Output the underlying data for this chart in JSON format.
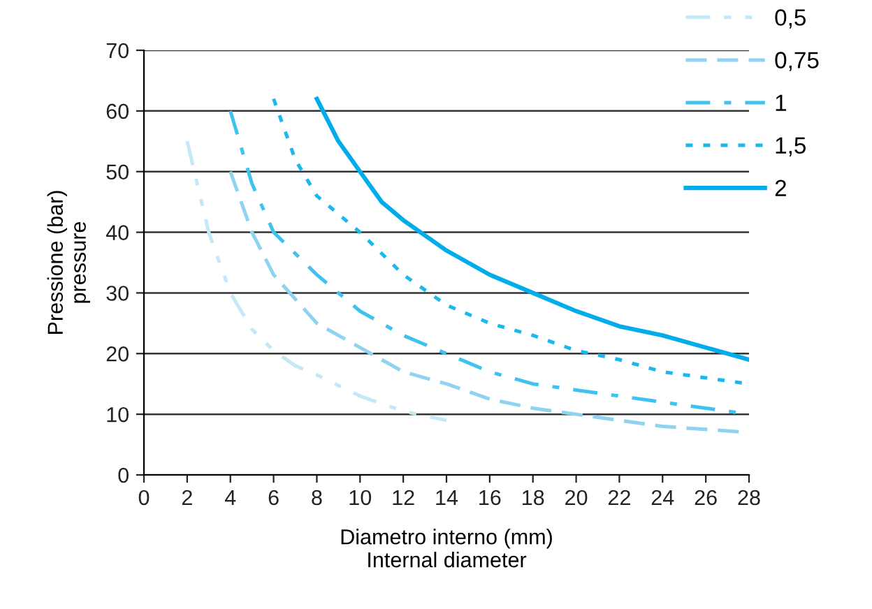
{
  "chart_data": {
    "type": "line",
    "xlabel": "Diametro interno (mm)\nInternal diameter",
    "ylabel": "Pressione (bar)\npressure",
    "xlim": [
      0,
      28
    ],
    "xticks": [
      0,
      2,
      4,
      6,
      8,
      10,
      12,
      14,
      16,
      18,
      20,
      22,
      24,
      26,
      28
    ],
    "ylim": [
      0,
      70
    ],
    "yticks": [
      0,
      10,
      20,
      30,
      40,
      50,
      60,
      70
    ],
    "grid": "y",
    "legend": "top right",
    "marker": "none",
    "series": [
      {
        "name": "0,5",
        "color": "#c5e8f7",
        "line_style": "dashdotdot",
        "x": [
          2,
          3,
          4,
          5,
          6,
          7,
          8,
          10,
          12,
          14
        ],
        "values": [
          55,
          40,
          30,
          24,
          20.5,
          18,
          16.5,
          13,
          10.5,
          9
        ]
      },
      {
        "name": "0,75",
        "color": "#8fd3f0",
        "line_style": "dashed",
        "x": [
          4,
          5,
          6,
          8,
          10,
          12,
          14,
          16,
          18,
          20,
          22,
          24,
          26,
          28
        ],
        "values": [
          50,
          40,
          33,
          25,
          21,
          17,
          15,
          12.5,
          11,
          10,
          9,
          8,
          7.5,
          7
        ]
      },
      {
        "name": "1",
        "color": "#3fc3ee",
        "line_style": "dashdot",
        "x": [
          4,
          5,
          6,
          8,
          10,
          12,
          14,
          16,
          18,
          20,
          22,
          24,
          26,
          28
        ],
        "values": [
          60,
          48,
          40,
          33,
          27,
          23,
          20,
          17,
          15,
          14,
          13,
          12,
          11,
          10
        ]
      },
      {
        "name": "1,5",
        "color": "#1ab8ec",
        "line_style": "dotted",
        "x": [
          6,
          7,
          8,
          10,
          12,
          14,
          16,
          18,
          20,
          22,
          24,
          26,
          28
        ],
        "values": [
          62,
          52,
          46,
          40,
          33,
          28,
          25,
          23,
          20.5,
          19,
          17,
          16,
          15
        ]
      },
      {
        "name": "2",
        "color": "#00adea",
        "line_style": "solid",
        "x": [
          8,
          9,
          10,
          11,
          12,
          14,
          16,
          18,
          20,
          22,
          24,
          26,
          28
        ],
        "values": [
          62,
          55,
          50,
          45,
          42,
          37,
          33,
          30,
          27,
          24.5,
          23,
          21,
          19
        ]
      }
    ]
  }
}
